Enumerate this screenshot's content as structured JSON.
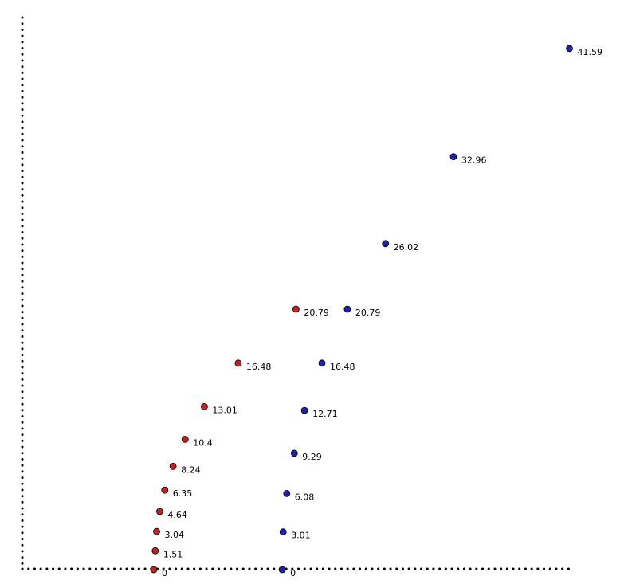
{
  "chart_data": {
    "type": "scatter",
    "title": "",
    "xlabel": "",
    "ylabel": "",
    "grid": false,
    "legend": "none",
    "series": [
      {
        "color": "#cc1f1f",
        "points": [
          {
            "x": 0,
            "y": 0,
            "label": "0"
          },
          {
            "x": 0.5,
            "y": 1.51,
            "label": "1.51"
          },
          {
            "x": 1.0,
            "y": 3.04,
            "label": "3.04"
          },
          {
            "x": 2.1,
            "y": 4.64,
            "label": "4.64"
          },
          {
            "x": 3.9,
            "y": 6.35,
            "label": "6.35"
          },
          {
            "x": 6.8,
            "y": 8.24,
            "label": "8.24"
          },
          {
            "x": 11.1,
            "y": 10.4,
            "label": "10.4"
          },
          {
            "x": 17.9,
            "y": 13.01,
            "label": "13.01"
          },
          {
            "x": 29.9,
            "y": 16.48,
            "label": "16.48"
          },
          {
            "x": 50.4,
            "y": 20.79,
            "label": "20.79"
          }
        ]
      },
      {
        "color": "#1f1fb4",
        "points": [
          {
            "x": 45.5,
            "y": 0,
            "label": "0"
          },
          {
            "x": 45.8,
            "y": 3.01,
            "label": "3.01"
          },
          {
            "x": 47.1,
            "y": 6.08,
            "label": "6.08"
          },
          {
            "x": 49.8,
            "y": 9.29,
            "label": "9.29"
          },
          {
            "x": 53.4,
            "y": 12.71,
            "label": "12.71"
          },
          {
            "x": 59.6,
            "y": 16.48,
            "label": "16.48"
          },
          {
            "x": 68.6,
            "y": 20.79,
            "label": "20.79"
          },
          {
            "x": 82.1,
            "y": 26.02,
            "label": "26.02"
          },
          {
            "x": 106.2,
            "y": 32.96,
            "label": "32.96"
          },
          {
            "x": 147.3,
            "y": 41.59,
            "label": "41.59"
          }
        ]
      }
    ],
    "xlim": [
      -46.6,
      148.0
    ],
    "ylim": [
      0,
      44.0
    ]
  }
}
